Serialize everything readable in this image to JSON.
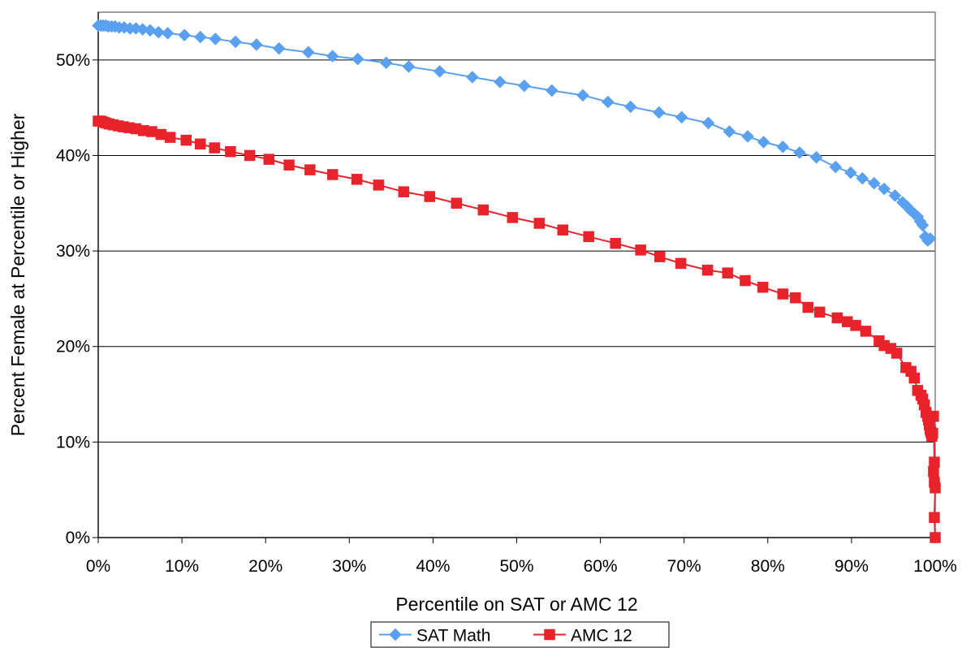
{
  "chart_data": {
    "type": "line",
    "title": "",
    "xlabel": "Percentile on SAT or AMC 12",
    "ylabel": "Percent Female at Percentile or Higher",
    "xlim": [
      0,
      100
    ],
    "ylim": [
      0,
      55
    ],
    "x_ticks": [
      0,
      10,
      20,
      30,
      40,
      50,
      60,
      70,
      80,
      90,
      100
    ],
    "x_tick_labels": [
      "0%",
      "10%",
      "20%",
      "30%",
      "40%",
      "50%",
      "60%",
      "70%",
      "80%",
      "90%",
      "100%"
    ],
    "y_ticks": [
      0,
      10,
      20,
      30,
      40,
      50
    ],
    "y_tick_labels": [
      "0%",
      "10%",
      "20%",
      "30%",
      "40%",
      "50%"
    ],
    "grid": "horizontal",
    "legend_position": "bottom",
    "series": [
      {
        "name": "SAT Math",
        "color": "#5aa0f0",
        "marker": "diamond",
        "x": [
          0,
          0.3,
          0.6,
          0.9,
          1.2,
          1.6,
          2,
          2.5,
          3.1,
          3.8,
          4.5,
          5.3,
          6.2,
          7.2,
          8.3,
          10.3,
          12.2,
          14,
          16.4,
          18.9,
          21.6,
          25.1,
          28,
          31,
          34.4,
          37.1,
          40.8,
          44.7,
          48,
          50.9,
          54.2,
          57.9,
          60.9,
          63.6,
          67,
          69.7,
          72.9,
          75.4,
          77.6,
          79.5,
          81.8,
          83.8,
          85.8,
          88.1,
          89.9,
          91.3,
          92.7,
          93.9,
          95.2,
          96.1,
          96.6,
          97,
          97.5,
          97.9,
          98.2,
          98.5,
          98.8,
          99.1,
          99.4
        ],
        "y": [
          53.6,
          53.6,
          53.6,
          53.6,
          53.5,
          53.5,
          53.5,
          53.4,
          53.4,
          53.3,
          53.3,
          53.2,
          53.1,
          52.9,
          52.8,
          52.6,
          52.4,
          52.2,
          51.9,
          51.6,
          51.2,
          50.8,
          50.4,
          50.1,
          49.7,
          49.3,
          48.8,
          48.2,
          47.7,
          47.3,
          46.8,
          46.3,
          45.6,
          45.1,
          44.5,
          44,
          43.4,
          42.5,
          42,
          41.4,
          40.9,
          40.3,
          39.8,
          38.8,
          38.2,
          37.6,
          37.1,
          36.5,
          35.8,
          35.1,
          34.7,
          34.3,
          33.9,
          33.6,
          33.1,
          32.7,
          31.5,
          31.1,
          31.3
        ]
      },
      {
        "name": "AMC 12",
        "color": "#e8232b",
        "marker": "square",
        "x": [
          0,
          0.3,
          0.6,
          0.9,
          1.3,
          1.8,
          2.4,
          3,
          3.7,
          4.5,
          5.4,
          6.4,
          7.5,
          8.6,
          10.5,
          12.2,
          13.9,
          15.8,
          18.1,
          20.4,
          22.8,
          25.3,
          28,
          30.9,
          33.5,
          36.5,
          39.6,
          42.8,
          46,
          49.5,
          52.7,
          55.5,
          58.6,
          61.8,
          64.8,
          67.1,
          69.6,
          72.8,
          75.2,
          77.3,
          79.4,
          81.8,
          83.3,
          84.8,
          86.2,
          88.3,
          89.5,
          90.5,
          91.7,
          93.3,
          93.9,
          94.7,
          95.4,
          96.5,
          97.1,
          97.5,
          97.9,
          98.3,
          98.5,
          98.7,
          98.9,
          99.1,
          99.2,
          99.3,
          99.4,
          99.5,
          99.6,
          99.7,
          99.8,
          99.9,
          99.8,
          99.9,
          100,
          99.9,
          100
        ],
        "y": [
          43.6,
          43.6,
          43.5,
          43.4,
          43.3,
          43.2,
          43.1,
          43,
          42.9,
          42.8,
          42.6,
          42.5,
          42.2,
          41.9,
          41.6,
          41.2,
          40.8,
          40.4,
          40,
          39.6,
          39,
          38.5,
          38,
          37.5,
          36.9,
          36.2,
          35.7,
          35,
          34.3,
          33.5,
          32.9,
          32.2,
          31.5,
          30.8,
          30.1,
          29.4,
          28.7,
          28,
          27.7,
          26.9,
          26.2,
          25.5,
          25.1,
          24.1,
          23.6,
          23,
          22.6,
          22.2,
          21.6,
          20.6,
          20.1,
          19.8,
          19.3,
          17.8,
          17.4,
          16.7,
          15.4,
          14.9,
          14.5,
          13.9,
          13.1,
          12.7,
          12.3,
          11.8,
          11.3,
          11,
          10.6,
          10.9,
          12.7,
          7.9,
          6.9,
          5.8,
          5.2,
          2.1,
          0
        ]
      }
    ]
  }
}
